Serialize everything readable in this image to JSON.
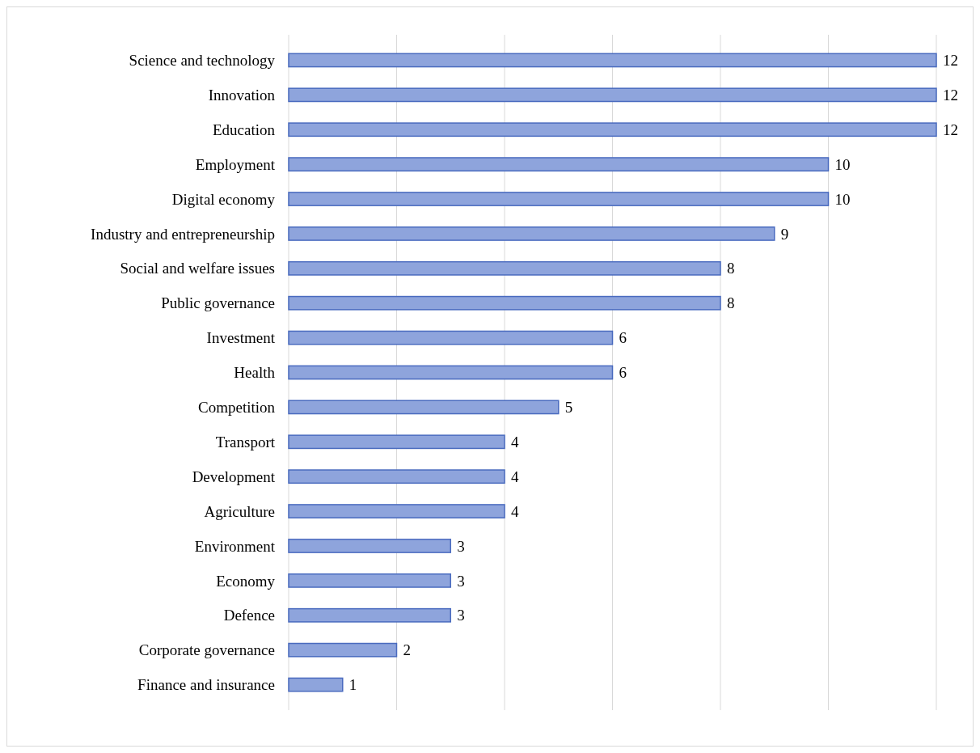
{
  "chart_data": {
    "type": "bar",
    "orientation": "horizontal",
    "categories": [
      "Science and technology",
      "Innovation",
      "Education",
      "Employment",
      "Digital economy",
      "Industry and entrepreneurship",
      "Social and welfare issues",
      "Public governance",
      "Investment",
      "Health",
      "Competition",
      "Transport",
      "Development",
      "Agriculture",
      "Environment",
      "Economy",
      "Defence",
      "Corporate governance",
      "Finance and insurance"
    ],
    "values": [
      12,
      12,
      12,
      10,
      10,
      9,
      8,
      8,
      6,
      6,
      5,
      4,
      4,
      4,
      3,
      3,
      3,
      2,
      1
    ],
    "color": "#8ea4dc",
    "xlim": [
      0,
      12
    ],
    "xticks": [
      {
        "value": 0,
        "label": null
      },
      {
        "value": 2,
        "label": null
      },
      {
        "value": 4,
        "label": null
      },
      {
        "value": 6,
        "label": null
      },
      {
        "value": 8,
        "label": null
      },
      {
        "value": 10,
        "label": null
      },
      {
        "value": 12,
        "label": null
      }
    ],
    "grid": "x",
    "tick_labels": "y",
    "data_labels": true
  }
}
